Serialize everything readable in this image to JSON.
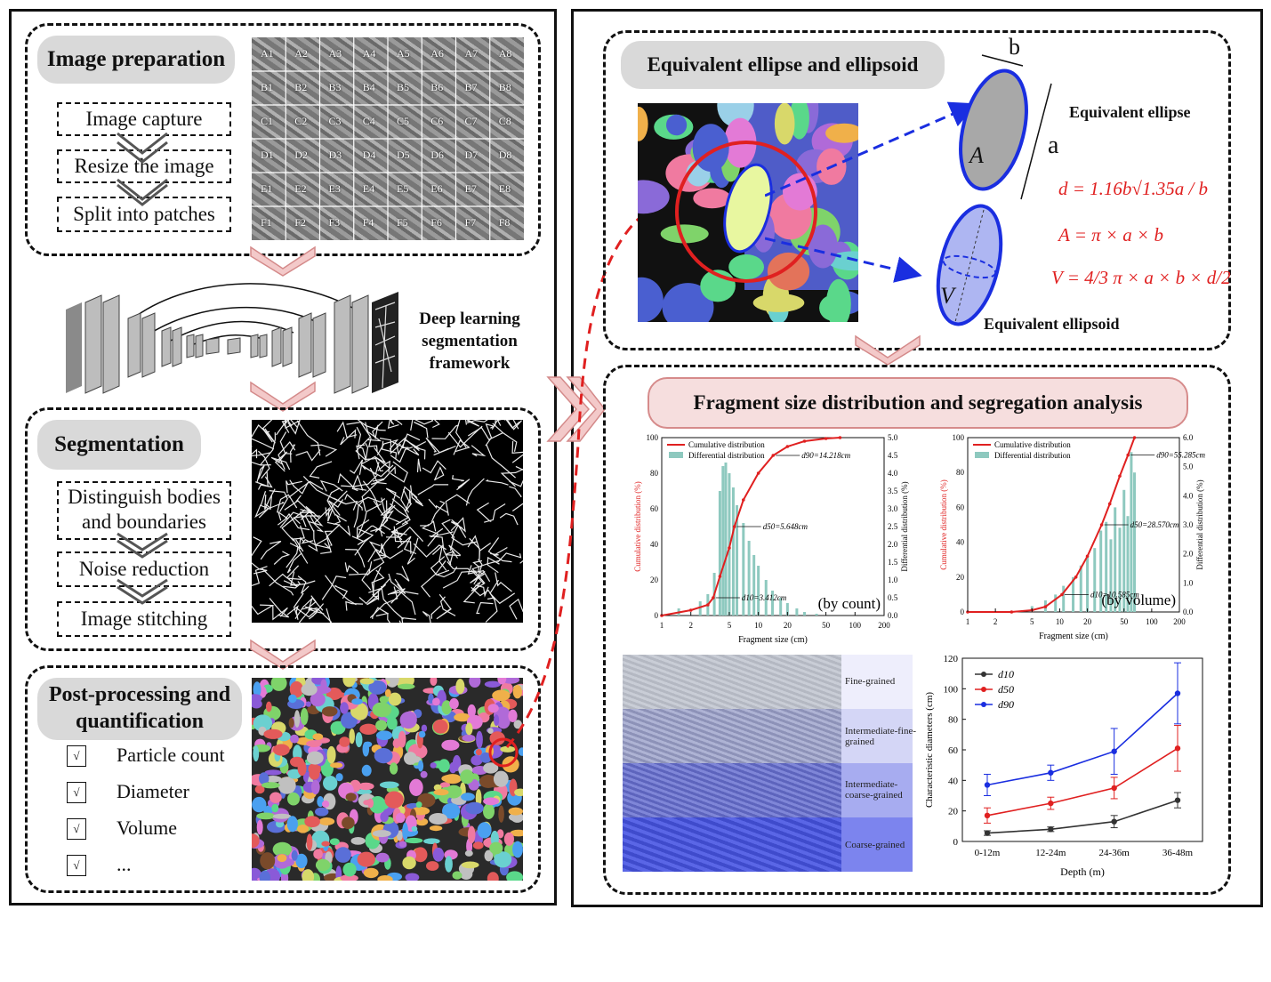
{
  "left": {
    "image_preparation": {
      "title": "Image preparation",
      "steps": [
        "Image capture",
        "Resize the image",
        "Split into patches"
      ],
      "grid_rows": [
        "A",
        "B",
        "C",
        "D",
        "E",
        "F"
      ],
      "grid_cols": [
        "1",
        "2",
        "3",
        "4",
        "5",
        "6",
        "7",
        "8"
      ]
    },
    "framework_label": "Deep learning segmentation framework",
    "segmentation": {
      "title": "Segmentation",
      "steps": [
        "Distinguish bodies and boundaries",
        "Noise reduction",
        "Image stitching"
      ]
    },
    "post": {
      "title": "Post-processing and quantification",
      "check_mark": "√",
      "items": [
        "Particle count",
        "Diameter",
        "Volume",
        "..."
      ]
    }
  },
  "right": {
    "ellipse": {
      "title": "Equivalent ellipse and ellipsoid",
      "label_ellipse": "Equivalent ellipse",
      "label_ellipsoid": "Equivalent ellipsoid",
      "sym_a": "a",
      "sym_b": "b",
      "sym_A": "A",
      "sym_V": "V",
      "formula_d": "d = 1.16b√1.35a / b",
      "formula_A": "A = π × a × b",
      "formula_V": "V = 4/3 π × a × b × d/2"
    },
    "fragment": {
      "title": "Fragment size distribution and segregation analysis",
      "bands": [
        "Fine-grained",
        "Intermediate-fine-grained",
        "Intermediate-coarse-grained",
        "Coarse-grained"
      ]
    }
  },
  "colors": {
    "red": "#e02020",
    "blue": "#1a2ee0",
    "teal": "#8ec9bf",
    "pill_gray": "#d9d9d9",
    "arrow_pink": "#f3c9c9"
  },
  "chart_data": [
    {
      "type": "area",
      "annotation": "(by count)",
      "legend": [
        "Cumulative distribution",
        "Differential distribution"
      ],
      "xlabel": "Fragment size (cm)",
      "ylabel": "Cumulative distribution (%)",
      "y2label": "Differential distribution (%)",
      "x_scale": "log",
      "x_ticks": [
        1,
        2,
        5,
        10,
        20,
        50,
        100,
        200
      ],
      "y_ticks": [
        0,
        20,
        40,
        60,
        80,
        100
      ],
      "y2_ticks": [
        0.0,
        0.5,
        1.0,
        1.5,
        2.0,
        2.5,
        3.0,
        3.5,
        4.0,
        4.5,
        5.0
      ],
      "xlim": [
        1,
        200
      ],
      "ylim": [
        0,
        100
      ],
      "y2lim": [
        0,
        5
      ],
      "annotations": [
        {
          "label": "d90=14.218cm",
          "x": 14.218,
          "y": 90
        },
        {
          "label": "d50=5.648cm",
          "x": 5.648,
          "y": 50
        },
        {
          "label": "d10=3.412cm",
          "x": 3.412,
          "y": 10
        }
      ],
      "series": [
        {
          "name": "Cumulative distribution",
          "x": [
            1,
            2,
            3,
            3.412,
            4,
            5,
            5.648,
            7,
            10,
            14.218,
            20,
            30,
            50,
            70
          ],
          "y": [
            0,
            3,
            6,
            10,
            22,
            38,
            50,
            65,
            80,
            90,
            95,
            98,
            99.5,
            100
          ]
        },
        {
          "name": "Differential distribution",
          "x": [
            1.5,
            2.5,
            3,
            3.5,
            4,
            4.3,
            4.6,
            5,
            5.5,
            6,
            7,
            8,
            9,
            10,
            12,
            14,
            17,
            20,
            25,
            30,
            40
          ],
          "y": [
            0.2,
            0.4,
            0.6,
            1.2,
            3.5,
            4.2,
            4.3,
            4.0,
            3.6,
            3.1,
            2.6,
            2.1,
            1.7,
            1.4,
            1.0,
            0.7,
            0.5,
            0.35,
            0.2,
            0.1,
            0.05
          ]
        }
      ]
    },
    {
      "type": "area",
      "annotation": "(by volume)",
      "legend": [
        "Cumulative distribution",
        "Differential distribution"
      ],
      "xlabel": "Fragment size (cm)",
      "ylabel": "Cumulative distribution (%)",
      "y2label": "Differential distribution (%)",
      "x_scale": "log",
      "x_ticks": [
        1,
        2,
        5,
        10,
        20,
        50,
        100,
        200
      ],
      "y_ticks": [
        0,
        20,
        40,
        60,
        80,
        100
      ],
      "y2_ticks": [
        0.0,
        1.0,
        2.0,
        3.0,
        4.0,
        5.0,
        6.0
      ],
      "xlim": [
        1,
        200
      ],
      "ylim": [
        0,
        100
      ],
      "y2lim": [
        0,
        6
      ],
      "annotations": [
        {
          "label": "d90=55.285cm",
          "x": 55.285,
          "y": 90
        },
        {
          "label": "d50=28.570cm",
          "x": 28.57,
          "y": 50
        },
        {
          "label": "d10=10.585cm",
          "x": 10.585,
          "y": 10
        }
      ],
      "series": [
        {
          "name": "Cumulative distribution",
          "x": [
            1,
            3,
            5,
            7,
            10.585,
            15,
            20,
            28.57,
            35,
            45,
            55.285,
            65
          ],
          "y": [
            0,
            0,
            1,
            3,
            10,
            20,
            32,
            50,
            62,
            78,
            90,
            100
          ]
        },
        {
          "name": "Differential distribution",
          "x": [
            5,
            7,
            9,
            11,
            14,
            17,
            20,
            24,
            28,
            32,
            36,
            40,
            45,
            50,
            55,
            60,
            65
          ],
          "y": [
            0.2,
            0.4,
            0.6,
            0.9,
            1.2,
            1.6,
            1.9,
            2.2,
            2.8,
            3.1,
            2.5,
            3.6,
            2.9,
            4.2,
            3.3,
            5.5,
            4.8
          ]
        }
      ]
    },
    {
      "type": "line",
      "categories": [
        "0-12m",
        "12-24m",
        "24-36m",
        "36-48m"
      ],
      "xlabel": "Depth (m)",
      "ylabel": "Characteristic diameters (cm)",
      "y_ticks": [
        0,
        20,
        40,
        60,
        80,
        100,
        120
      ],
      "ylim": [
        0,
        120
      ],
      "legend_position": "top-left",
      "series": [
        {
          "name": "d10",
          "color": "#333333",
          "values": [
            5.5,
            8,
            13,
            27
          ],
          "err": [
            1.5,
            1.5,
            4,
            5
          ]
        },
        {
          "name": "d50",
          "color": "#e02020",
          "values": [
            17,
            25,
            35,
            61
          ],
          "err": [
            5,
            4,
            7,
            15
          ]
        },
        {
          "name": "d90",
          "color": "#1a2ee0",
          "values": [
            37,
            45,
            59,
            97
          ],
          "err": [
            7,
            5,
            15,
            20
          ]
        }
      ]
    }
  ]
}
